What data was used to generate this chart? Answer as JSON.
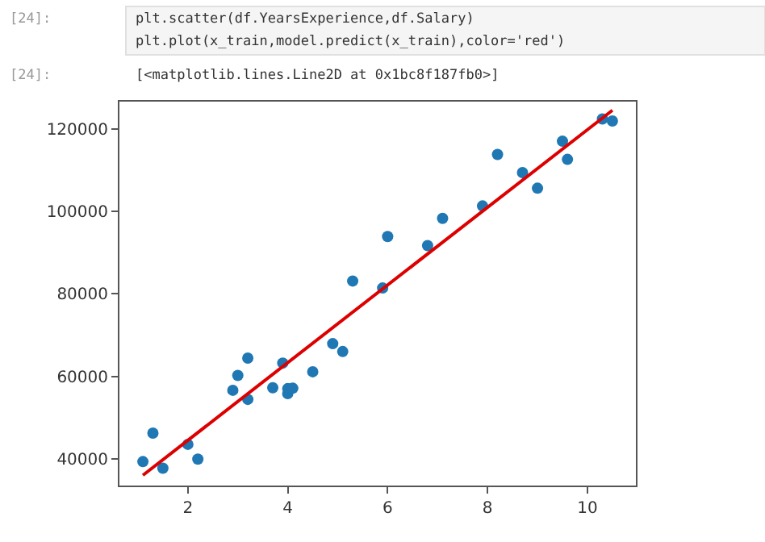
{
  "chart_data": {
    "type": "scatter",
    "annotations": [
      "[24]:",
      "plt.scatter(df.YearsExperience,df.Salary)",
      "plt.plot(x_train,model.predict(x_train),color='red')",
      "[24]:",
      "[<matplotlib.lines.Line2D at 0x1bc8f187fb0>]"
    ],
    "xlim": [
      0.63,
      10.97
    ],
    "xticks": [
      2,
      4,
      6,
      8,
      10
    ],
    "ylim": [
      33500,
      126600
    ],
    "yticks": [
      40000,
      60000,
      80000,
      100000,
      120000
    ],
    "series": [
      {
        "marker": "circle",
        "color": "#1f77b4",
        "x": [
          1.1,
          1.3,
          1.5,
          2.0,
          2.2,
          2.9,
          3.0,
          3.2,
          3.2,
          3.7,
          3.9,
          4.0,
          4.0,
          4.1,
          4.5,
          4.9,
          5.1,
          5.3,
          5.9,
          6.0,
          6.8,
          7.1,
          7.9,
          8.2,
          8.7,
          9.0,
          9.5,
          9.6,
          10.3,
          10.5
        ],
        "values": [
          39300,
          46200,
          37700,
          43500,
          39900,
          56600,
          60200,
          54400,
          64400,
          57200,
          63200,
          55800,
          57000,
          57100,
          61100,
          67900,
          66000,
          83100,
          81400,
          93900,
          91700,
          98300,
          101300,
          113800,
          109400,
          105600,
          117000,
          112600,
          122400,
          121900
        ]
      },
      {
        "type": "line",
        "marker": "none",
        "line_style": "solid",
        "color": "#dd0000",
        "x": [
          1.1,
          10.5
        ],
        "values": [
          36000,
          124500
        ]
      }
    ]
  }
}
